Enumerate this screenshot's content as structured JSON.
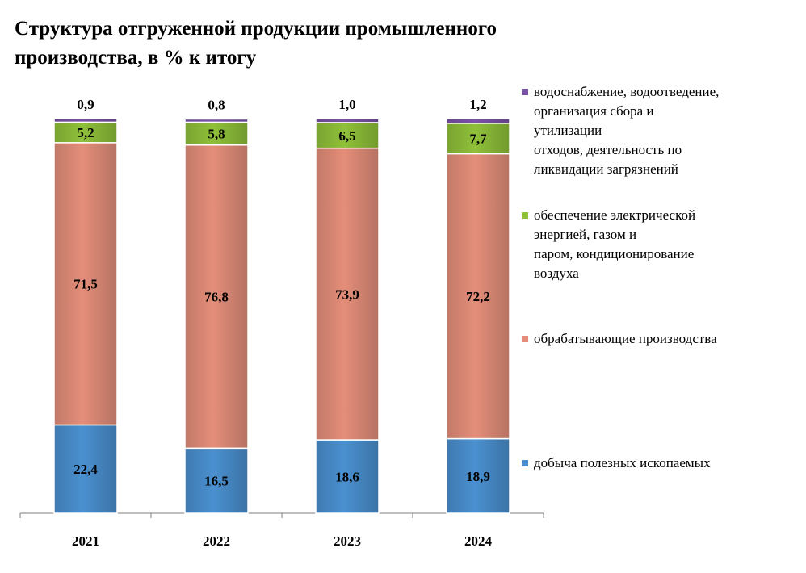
{
  "title_line1": "Структура отгруженной продукции промышленного",
  "title_line2": "производства, в % к итогу",
  "chart_data": {
    "type": "bar",
    "stacked": true,
    "title": "Структура отгруженной продукции промышленного производства, в % к итогу",
    "categories": [
      "2021",
      "2022",
      "2023",
      "2024"
    ],
    "series": [
      {
        "name": "добыча полезных ископаемых",
        "color": "#4a90d0",
        "values": [
          22.4,
          16.5,
          18.6,
          18.9
        ],
        "labels": [
          "22,4",
          "16,5",
          "18,6",
          "18,9"
        ]
      },
      {
        "name": "обрабатывающие производства",
        "color": "#e48e7a",
        "values": [
          71.5,
          76.8,
          73.9,
          72.2
        ],
        "labels": [
          "71,5",
          "76,8",
          "73,9",
          "72,2"
        ]
      },
      {
        "name": "обеспечение электрической энергией, газом и паром, кондиционирование воздуха",
        "color": "#8fc03a",
        "values": [
          5.2,
          5.8,
          6.5,
          7.7
        ],
        "labels": [
          "5,2",
          "5,8",
          "6,5",
          "7,7"
        ]
      },
      {
        "name": "водоснабжение, водоотведение, организация сбора и утилизации отходов, деятельность по ликвидации загрязнений",
        "color": "#7a52a8",
        "values": [
          0.9,
          0.8,
          1.0,
          1.2
        ],
        "labels": [
          "0,9",
          "0,8",
          "1,0",
          "1,2"
        ]
      }
    ],
    "ylim": [
      0,
      100
    ],
    "legend_position": "right"
  },
  "legend": [
    {
      "label": "водоснабжение, водоотведение,\nорганизация сбора и\nутилизации\nотходов, деятельность по\nликвидации загрязнений",
      "color": "#7a52a8"
    },
    {
      "label": "обеспечение электрической\nэнергией, газом и\nпаром, кондиционирование\nвоздуха",
      "color": "#8fc03a"
    },
    {
      "label": "обрабатывающие производства",
      "color": "#e48e7a"
    },
    {
      "label": "добыча полезных ископаемых",
      "color": "#4a90d0"
    }
  ]
}
